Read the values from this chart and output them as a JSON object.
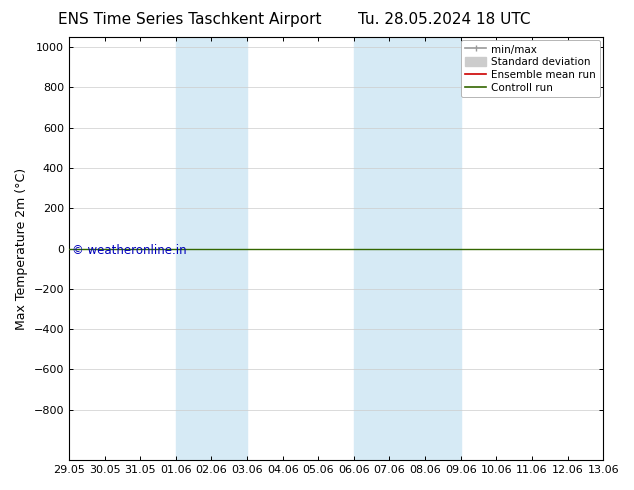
{
  "title_left": "ENS Time Series Taschkent Airport",
  "title_right": "Tu. 28.05.2024 18 UTC",
  "ylabel": "Max Temperature 2m (°C)",
  "ylim_top": -1050,
  "ylim_bottom": 1050,
  "yticks": [
    -800,
    -600,
    -400,
    -200,
    0,
    200,
    400,
    600,
    800,
    1000
  ],
  "xtick_labels": [
    "29.05",
    "30.05",
    "31.05",
    "01.06",
    "02.06",
    "03.06",
    "04.06",
    "05.06",
    "06.06",
    "07.06",
    "08.06",
    "09.06",
    "10.06",
    "11.06",
    "12.06",
    "13.06"
  ],
  "shaded_bands": [
    {
      "xmin": 3,
      "xmax": 5
    },
    {
      "xmin": 8,
      "xmax": 11
    }
  ],
  "band_color": "#d6eaf5",
  "line_y": 0.0,
  "green_line_color": "#336600",
  "copyright_text": "© weatheronline.in",
  "copyright_color": "#0000bb",
  "legend_items": [
    {
      "label": "min/max",
      "color": "#999999",
      "lw": 1.2
    },
    {
      "label": "Standard deviation",
      "color": "#cccccc",
      "lw": 5
    },
    {
      "label": "Ensemble mean run",
      "color": "#cc0000",
      "lw": 1.2
    },
    {
      "label": "Controll run",
      "color": "#336600",
      "lw": 1.2
    }
  ],
  "background_color": "#ffffff",
  "font_size_title": 11,
  "font_size_axis": 8,
  "font_size_legend": 7.5,
  "font_size_ylabel": 9
}
